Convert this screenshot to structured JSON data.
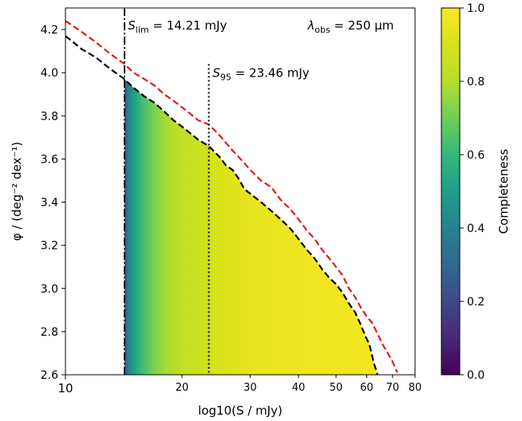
{
  "chart_data": {
    "type": "heatmap",
    "title": "",
    "xlabel": "log10(S / mJy)",
    "ylabel": "φ / (deg⁻² dex⁻¹)",
    "x_scale": "log",
    "xlim": [
      10,
      80
    ],
    "ylim": [
      2.6,
      4.3
    ],
    "x_ticks": [
      10,
      20,
      30,
      40,
      50,
      60,
      70,
      80
    ],
    "x_tick_labels": [
      "10",
      "20",
      "30",
      "40",
      "50",
      "60",
      "70",
      "80"
    ],
    "y_ticks": [
      2.6,
      2.8,
      3.0,
      3.2,
      3.4,
      3.6,
      3.8,
      4.0,
      4.2
    ],
    "y_tick_labels": [
      "2.6",
      "2.8",
      "3.0",
      "3.2",
      "3.4",
      "3.6",
      "3.8",
      "4.0",
      "4.2"
    ],
    "colorbar": {
      "label": "Completeness",
      "colormap": "viridis",
      "range": [
        0,
        1
      ],
      "ticks": [
        0.0,
        0.2,
        0.4,
        0.6,
        0.8,
        1.0
      ],
      "tick_labels": [
        "0.0",
        "0.2",
        "0.4",
        "0.6",
        "0.8",
        "1.0"
      ]
    },
    "completeness_profile": {
      "S": [
        14.21,
        14.6,
        15.0,
        15.5,
        16.0,
        17.0,
        18.0,
        19.0,
        20.0,
        22.0,
        25.0,
        30.0,
        40.0,
        60.0,
        65.0
      ],
      "completeness": [
        0.25,
        0.4,
        0.5,
        0.58,
        0.64,
        0.72,
        0.77,
        0.8,
        0.83,
        0.86,
        0.9,
        0.94,
        0.96,
        0.97,
        0.97
      ]
    },
    "series": [
      {
        "style": "dashed",
        "color": "#000000",
        "x": [
          10.0,
          10.5,
          11.0,
          12.0,
          13.0,
          14.21,
          15.0,
          16.0,
          17.0,
          18.0,
          19.0,
          20.0,
          21.0,
          22.0,
          23.46,
          25.0,
          26.0,
          27.0,
          28.0,
          29.0,
          30.0,
          32.0,
          34.0,
          36.0,
          38.0,
          40.0,
          42.0,
          44.0,
          46.0,
          48.0,
          50.0,
          52.0,
          54.0,
          56.0,
          58.0,
          59.5,
          61.0,
          62.5,
          64.0
        ],
        "y": [
          4.17,
          4.14,
          4.11,
          4.07,
          4.02,
          3.97,
          3.93,
          3.89,
          3.86,
          3.82,
          3.78,
          3.75,
          3.72,
          3.69,
          3.66,
          3.61,
          3.57,
          3.55,
          3.51,
          3.46,
          3.44,
          3.4,
          3.36,
          3.32,
          3.28,
          3.23,
          3.18,
          3.14,
          3.09,
          3.05,
          3.02,
          2.98,
          2.93,
          2.89,
          2.83,
          2.78,
          2.74,
          2.66,
          2.6
        ]
      },
      {
        "style": "dashed",
        "color": "#e41a1c",
        "x": [
          10.0,
          11.0,
          12.0,
          13.0,
          14.21,
          15.0,
          16.0,
          17.0,
          18.0,
          19.0,
          20.0,
          21.0,
          22.0,
          23.46,
          25.0,
          27.0,
          28.0,
          29.0,
          30.0,
          32.0,
          34.0,
          36.0,
          38.0,
          40.0,
          42.0,
          44.0,
          46.0,
          48.0,
          50.0,
          52.0,
          54.0,
          56.0,
          58.0,
          60.0,
          62.0,
          64.0,
          66.0,
          68.0,
          70.0,
          72.0
        ],
        "y": [
          4.24,
          4.19,
          4.14,
          4.09,
          4.04,
          4.0,
          3.97,
          3.94,
          3.9,
          3.87,
          3.84,
          3.81,
          3.78,
          3.76,
          3.71,
          3.64,
          3.61,
          3.58,
          3.55,
          3.5,
          3.47,
          3.41,
          3.37,
          3.32,
          3.27,
          3.23,
          3.18,
          3.14,
          3.1,
          3.06,
          3.0,
          2.96,
          2.91,
          2.87,
          2.84,
          2.79,
          2.74,
          2.7,
          2.66,
          2.61
        ]
      }
    ],
    "vlines": [
      {
        "x": 14.21,
        "style": "dashdot",
        "color": "#000000",
        "y_top": 4.3
      },
      {
        "x": 23.46,
        "style": "dotted",
        "color": "#000000",
        "y_top": 4.04
      }
    ],
    "annotations": [
      {
        "name": "s-lim",
        "symbol": "S",
        "subscript": "lim",
        "text": " = 14.21 mJy",
        "x": 14.5,
        "y": 4.2
      },
      {
        "name": "s-95",
        "symbol": "S",
        "subscript": "95",
        "text": " = 23.46 mJy",
        "x": 24.0,
        "y": 3.98
      },
      {
        "name": "lambda-obs",
        "symbol": "λ",
        "subscript": "obs",
        "text": " = 250 μm",
        "x": 70.5,
        "y": 4.2
      }
    ]
  }
}
